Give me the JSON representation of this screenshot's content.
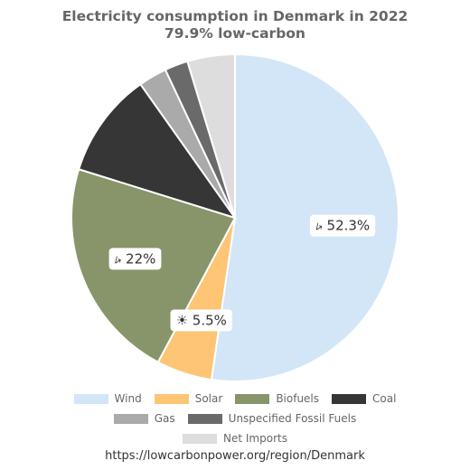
{
  "title_line1": "Electricity consumption in Denmark in 2022",
  "title_line2": "79.9% low-carbon",
  "source": "https://lowcarbonpower.org/region/Denmark",
  "chart_data": {
    "type": "pie",
    "legend_position": "bottom",
    "slices": [
      {
        "name": "Wind",
        "value": 52.3,
        "color": "#d2e6f7",
        "label": "⭟ 52.3%"
      },
      {
        "name": "Solar",
        "value": 5.5,
        "color": "#fec575",
        "label": "☀ 5.5%"
      },
      {
        "name": "Biofuels",
        "value": 22,
        "color": "#88956a",
        "label": "⭟ 22%"
      },
      {
        "name": "Coal",
        "value": 10.4,
        "color": "#363636",
        "label": ""
      },
      {
        "name": "Gas",
        "value": 2.8,
        "color": "#aaaaaa",
        "label": ""
      },
      {
        "name": "Unspecified Fossil Fuels",
        "value": 2.3,
        "color": "#6a6a6a",
        "label": ""
      },
      {
        "name": "Net Imports",
        "value": 4.7,
        "color": "#dddddd",
        "label": ""
      }
    ]
  },
  "legend_rows": [
    [
      "Wind",
      "Solar",
      "Biofuels",
      "Coal"
    ],
    [
      "Gas",
      "Unspecified Fossil Fuels"
    ],
    [
      "Net Imports"
    ]
  ]
}
